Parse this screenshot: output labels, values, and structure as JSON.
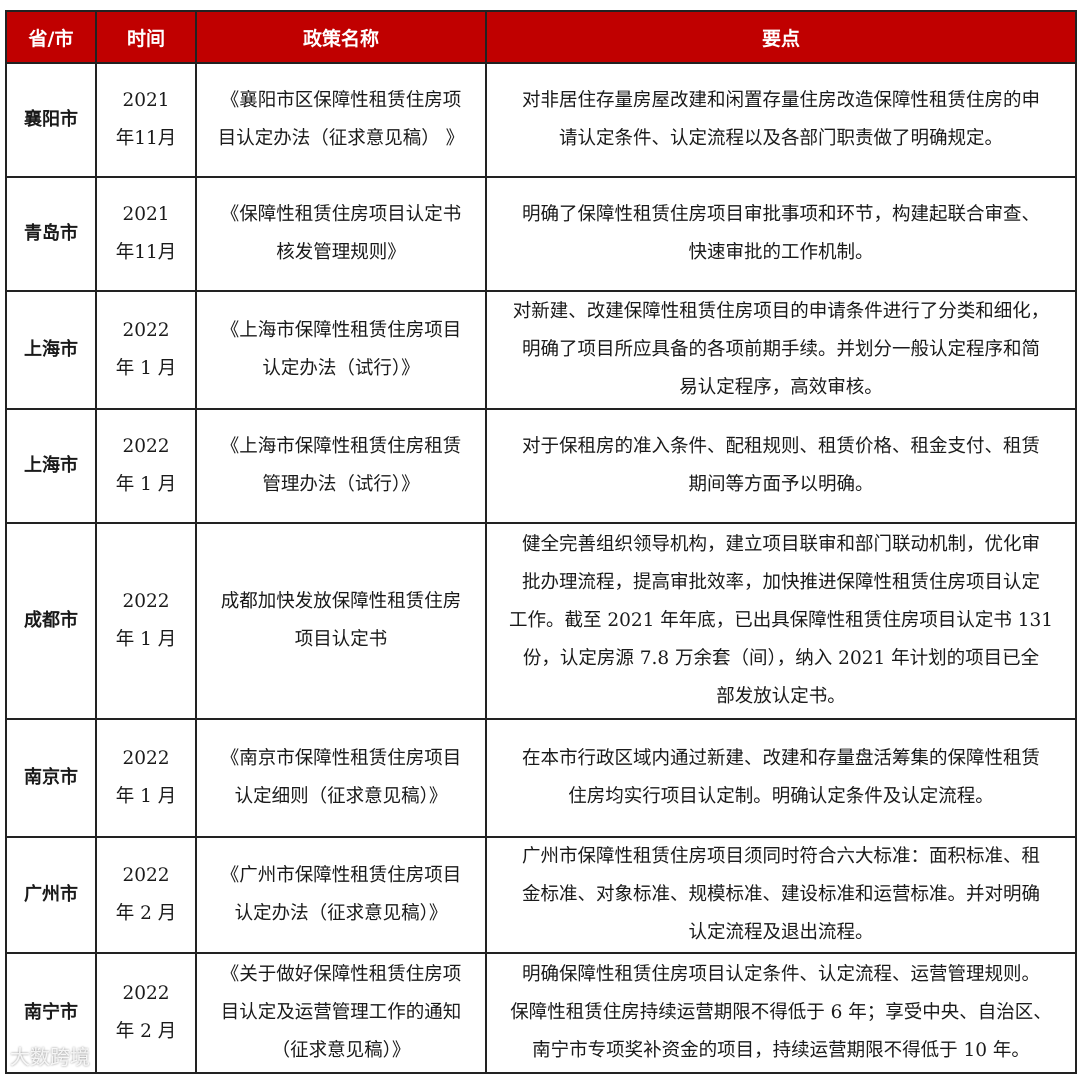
{
  "header": {
    "col_city": "省/市",
    "col_time": "时间",
    "col_policy": "政策名称",
    "col_points": "要点",
    "color": "#c00000"
  },
  "rows": [
    {
      "city": "襄阳市",
      "time": "2021\n年11月",
      "policy": "《襄阳市区保障性租赁住房项\n目认定办法（征求意见稿）  》",
      "points": "对非居住存量房屋改建和闲置存量住房改造保障性租赁住房的申\n请认定条件、认定流程以及各部门职责做了明确规定。"
    },
    {
      "city": "青岛市",
      "time": "2021\n年11月",
      "policy": "《保障性租赁住房项目认定书\n核发管理规则》",
      "points": "明确了保障性租赁住房项目审批事项和环节，构建起联合审查、\n快速审批的工作机制。"
    },
    {
      "city": "上海市",
      "time": "2022\n年 1 月",
      "policy": "《上海市保障性租赁住房项目\n认定办法（试行）》",
      "points": "对新建、改建保障性租赁住房项目的申请条件进行了分类和细化，\n明确了项目所应具备的各项前期手续。并划分一般认定程序和简\n易认定程序，高效审核。"
    },
    {
      "city": "上海市",
      "time": "2022\n年 1 月",
      "policy": "《上海市保障性租赁住房租赁\n管理办法（试行）》",
      "points": "对于保租房的准入条件、配租规则、租赁价格、租金支付、租赁\n期间等方面予以明确。"
    },
    {
      "city": "成都市",
      "time": "2022\n年 1 月",
      "policy": "成都加快发放保障性租赁住房\n项目认定书",
      "points": "健全完善组织领导机构，建立项目联审和部门联动机制，优化审\n批办理流程，提高审批效率，加快推进保障性租赁住房项目认定\n工作。截至 2021 年年底，已出具保障性租赁住房项目认定书 131\n份，认定房源 7.8 万余套（间），纳入 2021 年计划的项目已全\n部发放认定书。"
    },
    {
      "city": "南京市",
      "time": "2022\n年 1 月",
      "policy": "《南京市保障性租赁住房项目\n认定细则（征求意见稿）》",
      "points": "在本市行政区域内通过新建、改建和存量盘活筹集的保障性租赁\n住房均实行项目认定制。明确认定条件及认定流程。"
    },
    {
      "city": "广州市",
      "time": "2022\n年 2 月",
      "policy": "《广州市保障性租赁住房项目\n认定办法（征求意见稿）》",
      "points": "广州市保障性租赁住房项目须同时符合六大标准：面积标准、租\n金标准、对象标准、规模标准、建设标准和运营标准。并对明确\n认定流程及退出流程。"
    },
    {
      "city": "南宁市",
      "time": "2022\n年 2 月",
      "policy": "《关于做好保障性租赁住房项\n目认定及运营管理工作的通知\n（征求意见稿）》",
      "points": "明确保障性租赁住房项目认定条件、认定流程、运营管理规则。\n保障性租赁住房持续运营期限不得低于 6 年；享受中央、自治区、\n南宁市专项奖补资金的项目，持续运营期限不得低于 10 年。"
    }
  ],
  "watermark": "大数跨境"
}
